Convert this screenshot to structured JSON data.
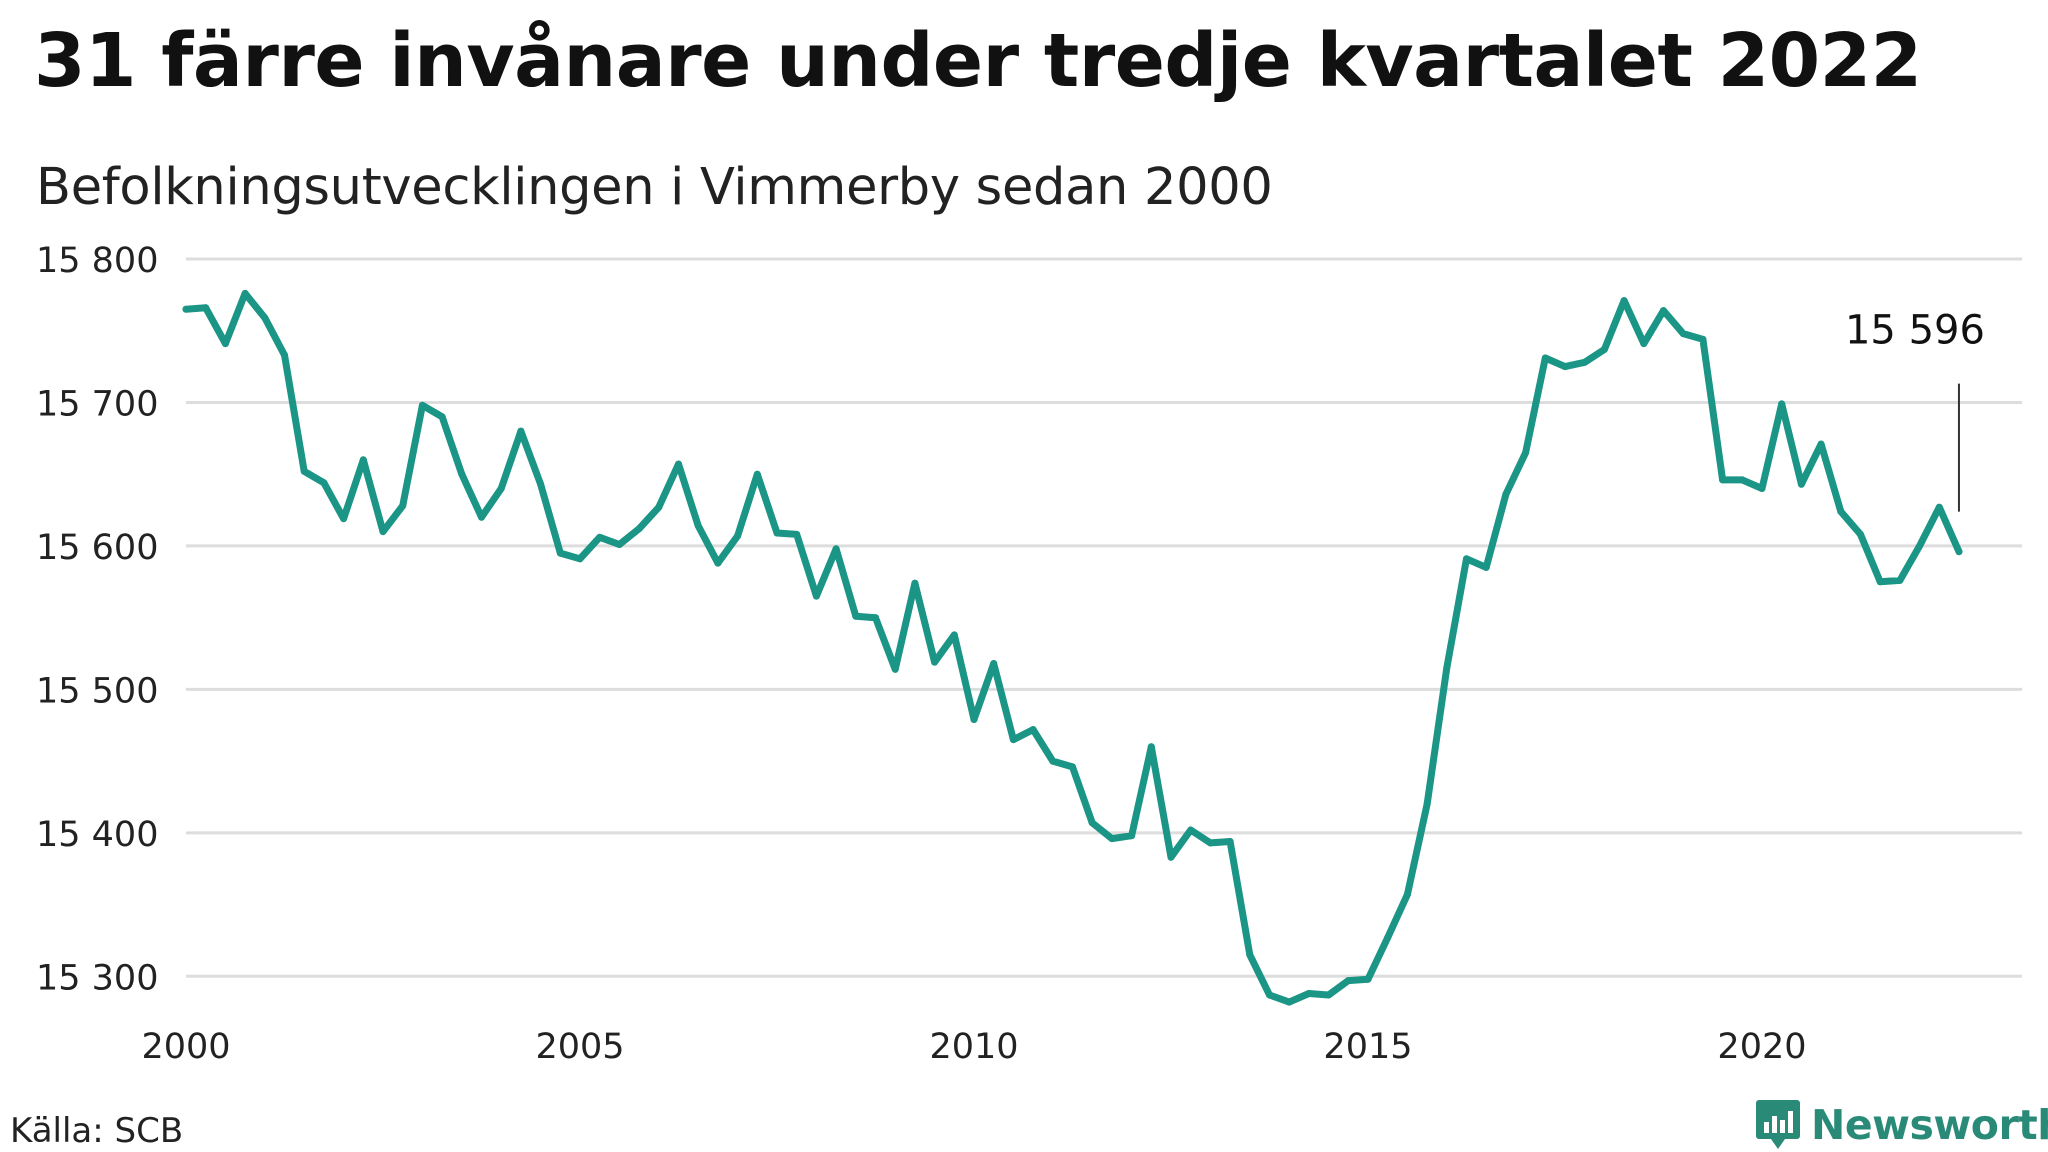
{
  "header": {
    "title": "31 färre invånare under tredje kvartalet 2022",
    "subtitle": "Befolkningsutvecklingen i Vimmerby sedan 2000"
  },
  "footer": {
    "source": "Källa: SCB",
    "brand": "Newsworthy",
    "brand_icon": "newsworthy-logo-icon"
  },
  "colors": {
    "line": "#1b9585",
    "grid": "#dddddd",
    "brand": "#2a8a78"
  },
  "chart_data": {
    "type": "line",
    "title": "31 färre invånare under tredje kvartalet 2022",
    "subtitle": "Befolkningsutvecklingen i Vimmerby sedan 2000",
    "xlabel": "",
    "ylabel": "",
    "xlim": [
      2000,
      2023.3
    ],
    "ylim": [
      15280,
      15800
    ],
    "x_ticks": [
      2000,
      2005,
      2010,
      2015,
      2020
    ],
    "x_tick_labels": [
      "2000",
      "2005",
      "2010",
      "2015",
      "2020"
    ],
    "y_ticks": [
      15300,
      15400,
      15500,
      15600,
      15700,
      15800
    ],
    "y_tick_labels": [
      "15 300",
      "15 400",
      "15 500",
      "15 600",
      "15 700",
      "15 800"
    ],
    "grid": "horizontal",
    "annotation": {
      "x": 2022.5,
      "y": 15596,
      "label": "15 596"
    },
    "x": [
      2000.0,
      2000.25,
      2000.5,
      2000.75,
      2001.0,
      2001.25,
      2001.5,
      2001.75,
      2002.0,
      2002.25,
      2002.5,
      2002.75,
      2003.0,
      2003.25,
      2003.5,
      2003.75,
      2004.0,
      2004.25,
      2004.5,
      2004.75,
      2005.0,
      2005.25,
      2005.5,
      2005.75,
      2006.0,
      2006.25,
      2006.5,
      2006.75,
      2007.0,
      2007.25,
      2007.5,
      2007.75,
      2008.0,
      2008.25,
      2008.5,
      2008.75,
      2009.0,
      2009.25,
      2009.5,
      2009.75,
      2010.0,
      2010.25,
      2010.5,
      2010.75,
      2011.0,
      2011.25,
      2011.5,
      2011.75,
      2012.0,
      2012.25,
      2012.5,
      2012.75,
      2013.0,
      2013.25,
      2013.5,
      2013.75,
      2014.0,
      2014.25,
      2014.5,
      2014.75,
      2015.0,
      2015.25,
      2015.5,
      2015.75,
      2016.0,
      2016.25,
      2016.5,
      2016.75,
      2017.0,
      2017.25,
      2017.5,
      2017.75,
      2018.0,
      2018.25,
      2018.5,
      2018.75,
      2019.0,
      2019.25,
      2019.5,
      2019.75,
      2020.0,
      2020.25,
      2020.5,
      2020.75,
      2021.0,
      2021.25,
      2021.5,
      2021.75,
      2022.0,
      2022.25,
      2022.5
    ],
    "series": [
      {
        "values": [
          15765,
          15766,
          15741,
          15776,
          15759,
          15733,
          15652,
          15644,
          15619,
          15660,
          15610,
          15628,
          15698,
          15690,
          15650,
          15620,
          15640,
          15680,
          15643,
          15595,
          15591,
          15606,
          15601,
          15612,
          15627,
          15657,
          15614,
          15588,
          15607,
          15650,
          15609,
          15608,
          15565,
          15598,
          15551,
          15550,
          15514,
          15574,
          15519,
          15538,
          15479,
          15518,
          15465,
          15472,
          15450,
          15446,
          15407,
          15396,
          15398,
          15460,
          15383,
          15402,
          15393,
          15394,
          15315,
          15287,
          15282,
          15288,
          15287,
          15297,
          15298,
          15327,
          15357,
          15420,
          15515,
          15591,
          15585,
          15636,
          15665,
          15731,
          15725,
          15728,
          15737,
          15771,
          15741,
          15764,
          15748,
          15744,
          15646,
          15646,
          15640,
          15699,
          15643,
          15671,
          15624,
          15608,
          15575,
          15576,
          15600,
          15627,
          15596
        ]
      }
    ]
  }
}
